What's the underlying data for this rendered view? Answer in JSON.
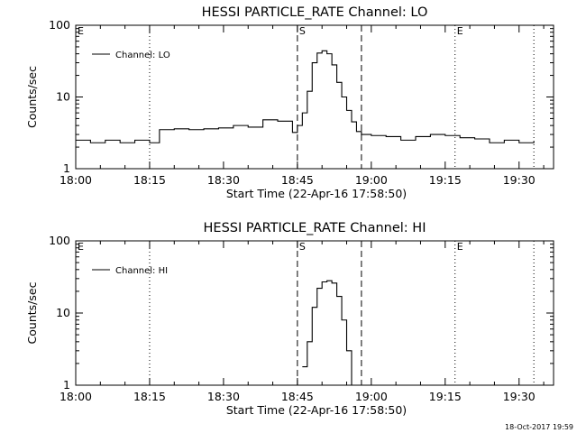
{
  "chart_data": [
    {
      "type": "line",
      "title": "HESSI PARTICLE_RATE Channel: LO",
      "xlabel": "Start Time (22-Apr-16 17:58:50)",
      "ylabel": "Counts/sec",
      "yscale": "log",
      "ylim": [
        1,
        100
      ],
      "xlim": [
        "18:00",
        "19:37"
      ],
      "x_ticks": [
        "18:00",
        "18:15",
        "18:30",
        "18:45",
        "19:00",
        "19:15",
        "19:30"
      ],
      "y_ticks": [
        "1",
        "10",
        "100"
      ],
      "legend": {
        "position": "top-left",
        "entries": [
          "Channel: LO"
        ]
      },
      "markers": [
        {
          "label": "E",
          "time": "18:00",
          "style": "dotted"
        },
        {
          "label": "S",
          "time": "18:45",
          "style": "dashed"
        },
        {
          "label": "",
          "time": "18:58",
          "style": "dashed"
        },
        {
          "label": "E",
          "time": "19:17",
          "style": "dotted"
        },
        {
          "label": "",
          "time": "18:15",
          "style": "dotted"
        },
        {
          "label": "",
          "time": "19:33",
          "style": "dotted"
        }
      ],
      "series": [
        {
          "name": "Channel: LO",
          "x": [
            "18:00",
            "18:03",
            "18:06",
            "18:09",
            "18:12",
            "18:15",
            "18:17",
            "18:20",
            "18:23",
            "18:26",
            "18:29",
            "18:32",
            "18:35",
            "18:38",
            "18:41",
            "18:44",
            "18:45",
            "18:46",
            "18:47",
            "18:48",
            "18:49",
            "18:50",
            "18:51",
            "18:52",
            "18:53",
            "18:54",
            "18:55",
            "18:56",
            "18:57",
            "18:58",
            "19:00",
            "19:03",
            "19:06",
            "19:09",
            "19:12",
            "19:15",
            "19:18",
            "19:21",
            "19:24",
            "19:27",
            "19:30",
            "19:33"
          ],
          "values": [
            2.5,
            2.3,
            2.5,
            2.3,
            2.5,
            2.3,
            3.5,
            3.6,
            3.5,
            3.6,
            3.7,
            4.0,
            3.8,
            4.8,
            4.6,
            3.2,
            4.0,
            6.0,
            12,
            30,
            41,
            44,
            40,
            28,
            16,
            10,
            6.5,
            4.5,
            3.3,
            3.0,
            2.9,
            2.8,
            2.5,
            2.8,
            3.0,
            2.9,
            2.7,
            2.6,
            2.3,
            2.5,
            2.3,
            2.4
          ]
        }
      ]
    },
    {
      "type": "line",
      "title": "HESSI PARTICLE_RATE Channel: HI",
      "xlabel": "Start Time (22-Apr-16 17:58:50)",
      "ylabel": "Counts/sec",
      "yscale": "log",
      "ylim": [
        1,
        100
      ],
      "xlim": [
        "18:00",
        "19:37"
      ],
      "x_ticks": [
        "18:00",
        "18:15",
        "18:30",
        "18:45",
        "19:00",
        "19:15",
        "19:30"
      ],
      "y_ticks": [
        "1",
        "10",
        "100"
      ],
      "legend": {
        "position": "top-left",
        "entries": [
          "Channel: HI"
        ]
      },
      "markers": [
        {
          "label": "E",
          "time": "18:00",
          "style": "dotted"
        },
        {
          "label": "S",
          "time": "18:45",
          "style": "dashed"
        },
        {
          "label": "",
          "time": "18:58",
          "style": "dashed"
        },
        {
          "label": "E",
          "time": "19:17",
          "style": "dotted"
        },
        {
          "label": "",
          "time": "18:15",
          "style": "dotted"
        },
        {
          "label": "",
          "time": "19:33",
          "style": "dotted"
        }
      ],
      "series": [
        {
          "name": "Channel: HI",
          "x": [
            "18:46",
            "18:47",
            "18:48",
            "18:49",
            "18:50",
            "18:51",
            "18:52",
            "18:53",
            "18:54",
            "18:55",
            "18:56"
          ],
          "values": [
            1.8,
            4.0,
            12,
            22,
            27,
            28,
            26,
            17,
            8,
            3,
            0.9
          ]
        }
      ]
    }
  ],
  "timestamp": "18-Oct-2017 19:59",
  "marker_letters": {
    "start": "S",
    "end": "E"
  }
}
